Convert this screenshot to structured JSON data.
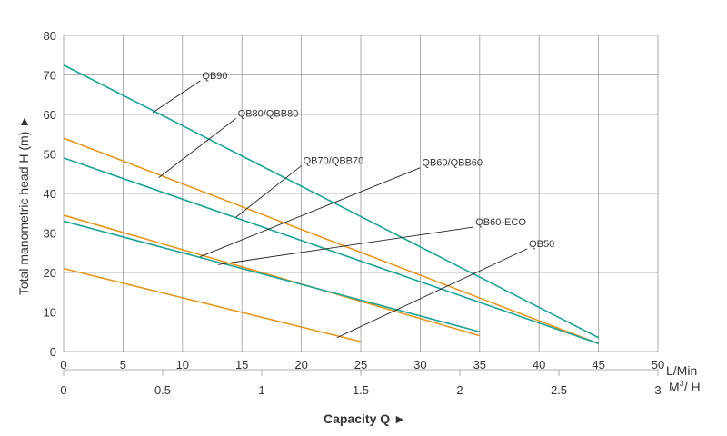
{
  "chart_data": {
    "type": "line",
    "title": "",
    "xlabel": "Capacity  Q  ►",
    "ylabel": "Total manometric head H (m)  ►",
    "x_unit_primary": "L/Min",
    "x_unit_secondary_html": "M³/ H",
    "x_unit_secondary_base": "M",
    "x_unit_secondary_sup": "3",
    "x_unit_secondary_rest": "/ H",
    "xlim": [
      0,
      50
    ],
    "ylim": [
      0,
      80
    ],
    "x_ticks": [
      "0",
      "5",
      "10",
      "15",
      "20",
      "25",
      "30",
      "35",
      "40",
      "45",
      "50"
    ],
    "x2_ticks": [
      "0",
      "0.5",
      "1",
      "1.5",
      "2",
      "2.5",
      "3"
    ],
    "y_ticks": [
      "0",
      "10",
      "20",
      "30",
      "40",
      "50",
      "60",
      "70",
      "80"
    ],
    "grid": true,
    "colors": {
      "teal": "#1aa296",
      "orange": "#e3961e",
      "grid": "#999999",
      "text": "#333333"
    },
    "series": [
      {
        "name": "QB90",
        "color": "#1aa296",
        "x": [
          0,
          45
        ],
        "y": [
          72.5,
          3.5
        ]
      },
      {
        "name": "QB80/QBB80",
        "color": "#e3961e",
        "x": [
          0,
          45
        ],
        "y": [
          54,
          2
        ]
      },
      {
        "name": "QB70/QBB70",
        "color": "#1aa296",
        "x": [
          0,
          45
        ],
        "y": [
          49,
          2
        ]
      },
      {
        "name": "QB60/QBB60",
        "color": "#e3961e",
        "x": [
          0,
          35
        ],
        "y": [
          34.5,
          4
        ]
      },
      {
        "name": "QB60-ECO",
        "color": "#1aa296",
        "x": [
          0,
          35
        ],
        "y": [
          33,
          5
        ]
      },
      {
        "name": "QB50",
        "color": "#e3961e",
        "x": [
          0,
          25
        ],
        "y": [
          21,
          2.5
        ]
      }
    ],
    "annotations": [
      {
        "text": "QB90",
        "label_at": [
          11.5,
          68.5
        ],
        "point_at": [
          7.5,
          60.5
        ]
      },
      {
        "text": "QB80/QBB80",
        "label_at": [
          14.5,
          59
        ],
        "point_at": [
          8,
          44
        ]
      },
      {
        "text": "QB70/QBB70",
        "label_at": [
          20,
          47
        ],
        "point_at": [
          14.5,
          34
        ]
      },
      {
        "text": "QB60/QBB60",
        "label_at": [
          30,
          46.5
        ],
        "point_at": [
          11.5,
          24
        ]
      },
      {
        "text": "QB60-ECO",
        "label_at": [
          34.5,
          31.5
        ],
        "point_at": [
          13,
          22
        ]
      },
      {
        "text": "QB50",
        "label_at": [
          39,
          26
        ],
        "point_at": [
          23,
          3.5
        ]
      }
    ]
  }
}
